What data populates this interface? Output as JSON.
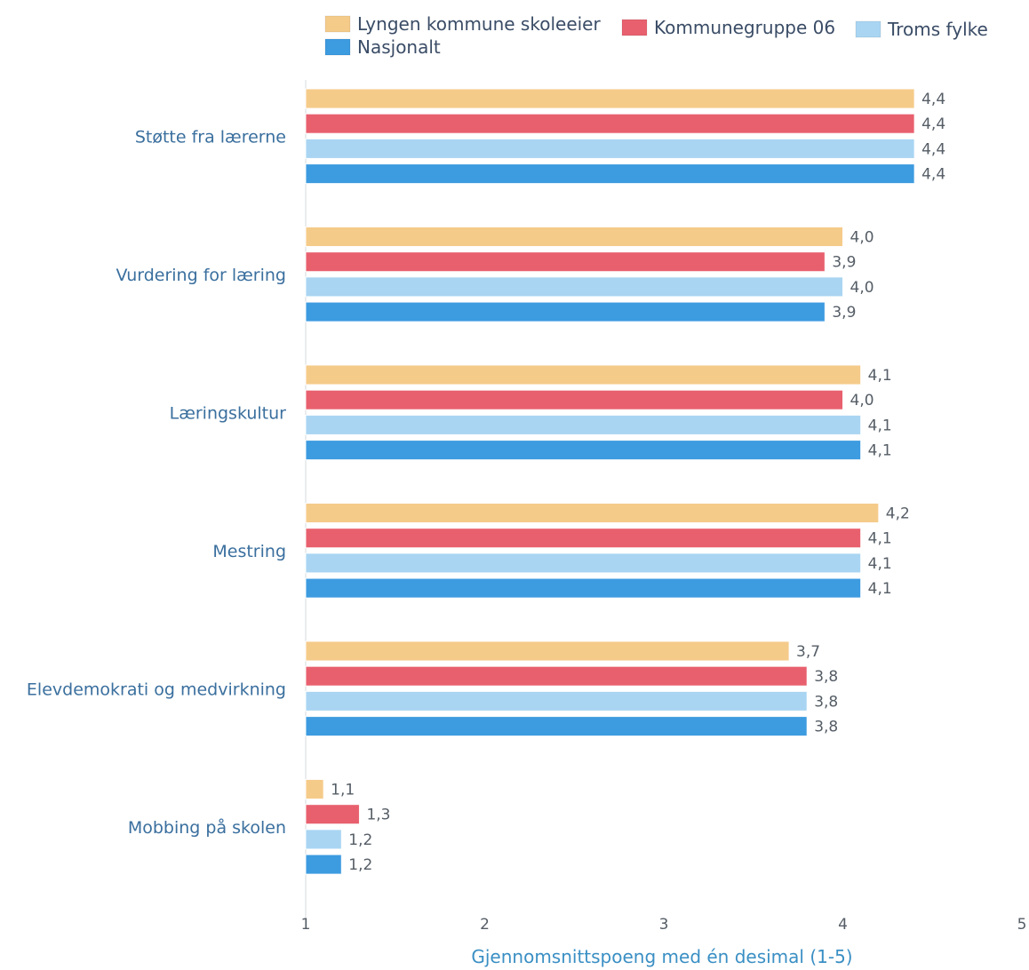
{
  "chart_data": {
    "type": "bar",
    "orientation": "horizontal",
    "categories": [
      "Støtte fra lærerne",
      "Vurdering for læring",
      "Læringskultur",
      "Mestring",
      "Elevdemokrati og medvirkning",
      "Mobbing på skolen"
    ],
    "series": [
      {
        "name": "Lyngen kommune skoleeier",
        "color": "#f5cb8a",
        "values": [
          4.4,
          4.0,
          4.1,
          4.2,
          3.7,
          1.1
        ],
        "labels": [
          "4,4",
          "4,0",
          "4,1",
          "4,2",
          "3,7",
          "1,1"
        ]
      },
      {
        "name": "Kommunegruppe 06",
        "color": "#e8606e",
        "values": [
          4.4,
          3.9,
          4.0,
          4.1,
          3.8,
          1.3
        ],
        "labels": [
          "4,4",
          "3,9",
          "4,0",
          "4,1",
          "3,8",
          "1,3"
        ]
      },
      {
        "name": "Troms fylke",
        "color": "#a9d5f2",
        "values": [
          4.4,
          4.0,
          4.1,
          4.1,
          3.8,
          1.2
        ],
        "labels": [
          "4,4",
          "4,0",
          "4,1",
          "4,1",
          "3,8",
          "1,2"
        ]
      },
      {
        "name": "Nasjonalt",
        "color": "#3d9be0",
        "values": [
          4.4,
          3.9,
          4.1,
          4.1,
          3.8,
          1.2
        ],
        "labels": [
          "4,4",
          "3,9",
          "4,1",
          "4,1",
          "3,8",
          "1,2"
        ]
      }
    ],
    "xlim": [
      1,
      5
    ],
    "xticks": [
      "1",
      "2",
      "3",
      "4",
      "5"
    ],
    "xlabel": "Gjennomsnittspoeng med én desimal (1-5)",
    "legend_position": "top"
  }
}
